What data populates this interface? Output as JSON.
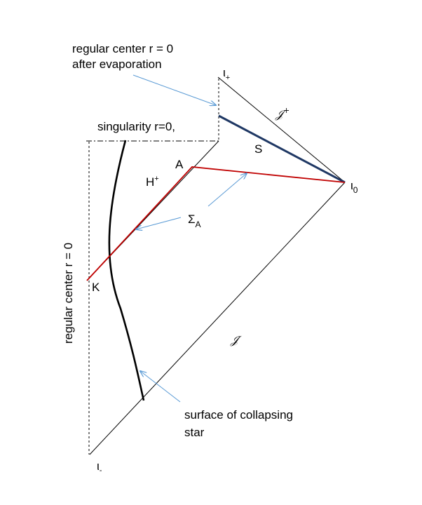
{
  "annotations": {
    "regular_center_after_line1": "regular center r = 0",
    "regular_center_after_line2": "after evaporation",
    "singularity": "singularity r=0,",
    "regular_center_vertical": "regular center r = 0",
    "surface_line1": "surface of collapsing",
    "surface_line2": "star"
  },
  "points": {
    "i_plus": "ι",
    "i_plus_sub": "+",
    "i_zero": "ι",
    "i_zero_sub": "0",
    "i_minus": "ι",
    "i_minus_sub": "-",
    "A": "A",
    "K": "K"
  },
  "labels": {
    "scri_plus": "𝒥",
    "scri_plus_sup": "+",
    "scri_minus": "𝒥",
    "scri_minus_sup": "-",
    "S": "S",
    "H": "H",
    "H_sup": "+",
    "sigma": "Σ",
    "sigma_sub": "A"
  },
  "colors": {
    "black": "#000000",
    "red": "#c00000",
    "navy": "#1f3864",
    "arrow": "#5b9bd5"
  }
}
